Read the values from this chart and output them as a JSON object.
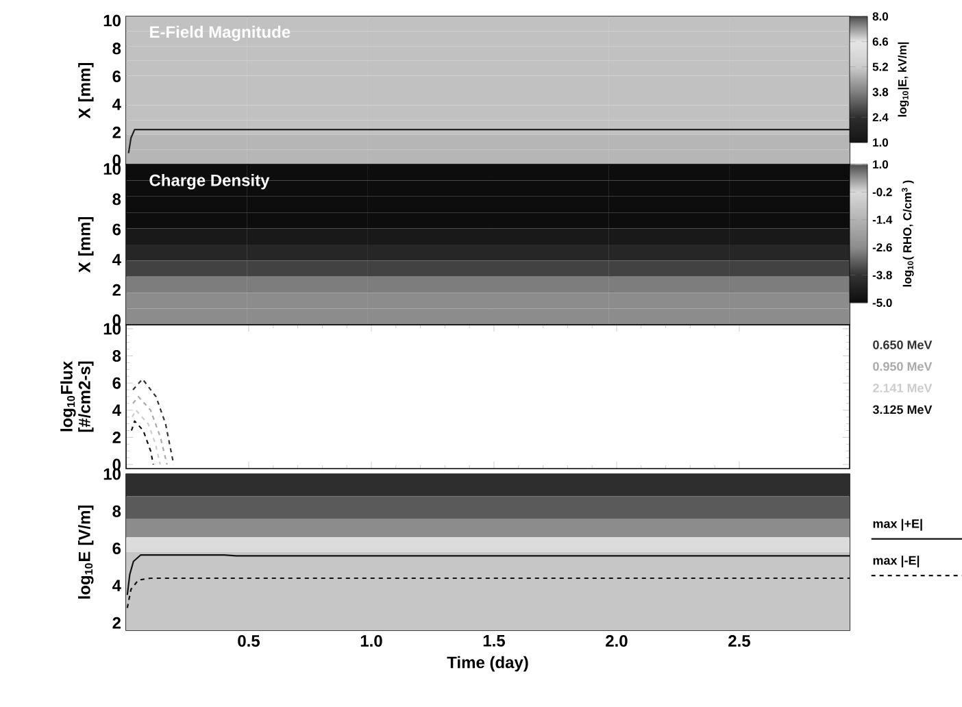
{
  "chart_data": [
    {
      "type": "heatmap",
      "title": "E-Field Magnitude",
      "ylabel": "X [mm]",
      "clabel": "log$_{10}$|E, kV/m|",
      "x": [
        0.246,
        0.738,
        1.229,
        1.721,
        2.213,
        2.704
      ],
      "y": [
        9.77,
        8.71,
        7.65,
        6.59,
        5.53,
        4.47,
        3.41,
        2.35,
        1.29,
        0.23
      ],
      "cells": [
        [
          5.0,
          5.0,
          5.0,
          5.0,
          5.0,
          5.0
        ],
        [
          5.0,
          5.0,
          5.0,
          5.0,
          5.0,
          5.0
        ],
        [
          5.0,
          5.0,
          5.0,
          5.0,
          5.0,
          5.0
        ],
        [
          5.0,
          5.0,
          5.0,
          5.0,
          5.0,
          5.0
        ],
        [
          5.0,
          5.0,
          5.0,
          5.0,
          5.0,
          5.0
        ],
        [
          5.0,
          5.0,
          5.0,
          5.0,
          5.0,
          5.0
        ],
        [
          5.0,
          5.0,
          5.0,
          5.0,
          5.0,
          5.0
        ],
        [
          5.0,
          5.0,
          5.0,
          5.0,
          5.0,
          5.0
        ],
        [
          4.8,
          4.8,
          4.8,
          4.8,
          4.8,
          4.8
        ],
        [
          4.8,
          4.8,
          4.8,
          4.8,
          4.8,
          4.8
        ]
      ],
      "clim": [
        1,
        8
      ],
      "cticks": [
        {
          "value": 8,
          "label": "8.0"
        },
        {
          "value": 6.6,
          "label": "6.6"
        },
        {
          "value": 5.2,
          "label": "5.2"
        },
        {
          "value": 3.8,
          "label": "3.8"
        },
        {
          "value": 2.4,
          "label": "2.4"
        },
        {
          "value": 1,
          "label": "1.0"
        }
      ],
      "xlim": [
        0,
        2.95
      ],
      "ylim": [
        -0.3,
        10.3
      ],
      "xticks": [
        0.5,
        1,
        1.5,
        2,
        2.5
      ],
      "yticks": [
        0,
        2,
        4,
        6,
        8,
        10
      ],
      "tick_labels": "y",
      "series": [
        {
          "type": "line",
          "color": "#222222",
          "line_style": "solid",
          "x": [
            0.01,
            0.02,
            0.035,
            2.95
          ],
          "values": [
            0.5,
            1.6,
            2.2,
            2.2
          ]
        }
      ]
    },
    {
      "type": "heatmap",
      "title": "Charge Density",
      "ylabel": "X [mm]",
      "clabel": "log$_{10}$( RHO, C/cm$^{3}$ )",
      "x": [
        0.246,
        0.738,
        1.229,
        1.721,
        2.213,
        2.704
      ],
      "y": [
        9.77,
        8.71,
        7.65,
        6.59,
        5.53,
        4.47,
        3.41,
        2.35,
        1.29,
        0.23
      ],
      "cells": [
        [
          -5.0,
          -5.0,
          -5.0,
          -5.0,
          -5.0,
          -5.0
        ],
        [
          -5.0,
          -5.0,
          -5.0,
          -5.0,
          -5.0,
          -5.0
        ],
        [
          -5.0,
          -5.0,
          -5.0,
          -5.0,
          -5.0,
          -5.0
        ],
        [
          -5.0,
          -5.0,
          -5.0,
          -5.0,
          -5.0,
          -5.0
        ],
        [
          -4.6,
          -4.6,
          -4.6,
          -4.6,
          -4.6,
          -4.6
        ],
        [
          -4.2,
          -4.2,
          -4.2,
          -4.2,
          -4.2,
          -4.2
        ],
        [
          -3.6,
          -3.6,
          -3.6,
          -3.6,
          -3.6,
          -3.6
        ],
        [
          -2.8,
          -2.8,
          -2.8,
          -2.8,
          -2.8,
          -2.8
        ],
        [
          -2.6,
          -2.6,
          -2.6,
          -2.6,
          -2.6,
          -2.6
        ],
        [
          -2.6,
          -2.6,
          -2.6,
          -2.6,
          -2.6,
          -2.6
        ]
      ],
      "clim": [
        -5,
        1
      ],
      "cticks": [
        {
          "value": 1,
          "label": "1.0"
        },
        -0.2,
        -1.4,
        -2.6,
        -3.8,
        {
          "value": -5,
          "label": "-5.0"
        }
      ],
      "xlim": [
        0,
        2.95
      ],
      "ylim": [
        -0.3,
        10.3
      ],
      "xticks": [
        0.5,
        1,
        1.5,
        2,
        2.5
      ],
      "yticks": [
        0,
        2,
        4,
        6,
        8,
        10
      ],
      "tick_labels": "y"
    },
    {
      "type": "line",
      "ylabel": "log$_{10}$Flux [#/cm2-s]",
      "legend": "right",
      "line_style": "dashed",
      "xlim": [
        0,
        2.95
      ],
      "ylim": [
        -0.3,
        10.3
      ],
      "xticks": [
        0.5,
        1,
        1.5,
        2,
        2.5
      ],
      "yticks": [
        0,
        2,
        4,
        6,
        8,
        10
      ],
      "tick_labels": "y",
      "series": [
        {
          "name": "0.650 MeV",
          "color": "#333333",
          "x": [
            0.028,
            0.067,
            0.122,
            0.161,
            0.183,
            0.194
          ],
          "values": [
            5.5,
            6.3,
            5.0,
            3.0,
            1.0,
            0
          ]
        },
        {
          "name": "0.950 MeV",
          "color": "#aaaaaa",
          "x": [
            0.028,
            0.05,
            0.1,
            0.14,
            0.167
          ],
          "values": [
            4.5,
            5.0,
            4.0,
            2.0,
            0
          ]
        },
        {
          "name": "2.141 MeV",
          "color": "#cccccc",
          "x": [
            0.025,
            0.04,
            0.09,
            0.12,
            0.139
          ],
          "values": [
            3.5,
            4.0,
            3.0,
            1.5,
            0
          ]
        },
        {
          "name": "3.125 MeV",
          "color": "#111111",
          "x": [
            0.022,
            0.035,
            0.07,
            0.1,
            0.111
          ],
          "values": [
            2.5,
            3.2,
            2.5,
            1.0,
            0
          ]
        }
      ]
    },
    {
      "type": "line",
      "ylabel": "log$_{10}$E [V/m]",
      "xlabel": "Time (day)",
      "legend": "right",
      "bands": [
        {
          "axis": "y",
          "from": 8.8,
          "to": 10,
          "color": "#2e2e2e"
        },
        {
          "axis": "y",
          "from": 7.6,
          "to": 8.8,
          "color": "#5a5a5a"
        },
        {
          "axis": "y",
          "from": 6.6,
          "to": 7.6,
          "color": "#8c8c8c"
        },
        {
          "axis": "y",
          "from": 5.8,
          "to": 6.6,
          "color": "#dcdcdc"
        },
        {
          "axis": "y",
          "from": 1.6,
          "to": 5.8,
          "color": "#c6c6c6"
        }
      ],
      "xlim": [
        0,
        2.95
      ],
      "ylim": [
        1.6,
        10
      ],
      "xticks": [
        0.5,
        {
          "value": 1,
          "label": "1.0"
        },
        1.5,
        {
          "value": 2,
          "label": "2.0"
        },
        2.5
      ],
      "yticks": [
        2,
        4,
        6,
        8,
        10
      ],
      "series": [
        {
          "type": "line",
          "name": "max |+E|",
          "color": "#111111",
          "line_style": "solid",
          "x": [
            0.005,
            0.015,
            0.03,
            0.06,
            0.4,
            0.45,
            2.95
          ],
          "values": [
            3.5,
            4.6,
            5.3,
            5.65,
            5.65,
            5.6,
            5.6
          ]
        },
        {
          "type": "line",
          "name": "max |-E|",
          "color": "#111111",
          "line_style": "dashed",
          "x": [
            0.005,
            0.02,
            0.05,
            0.1,
            2.95
          ],
          "values": [
            2.8,
            3.8,
            4.3,
            4.4,
            4.4
          ]
        }
      ]
    }
  ]
}
